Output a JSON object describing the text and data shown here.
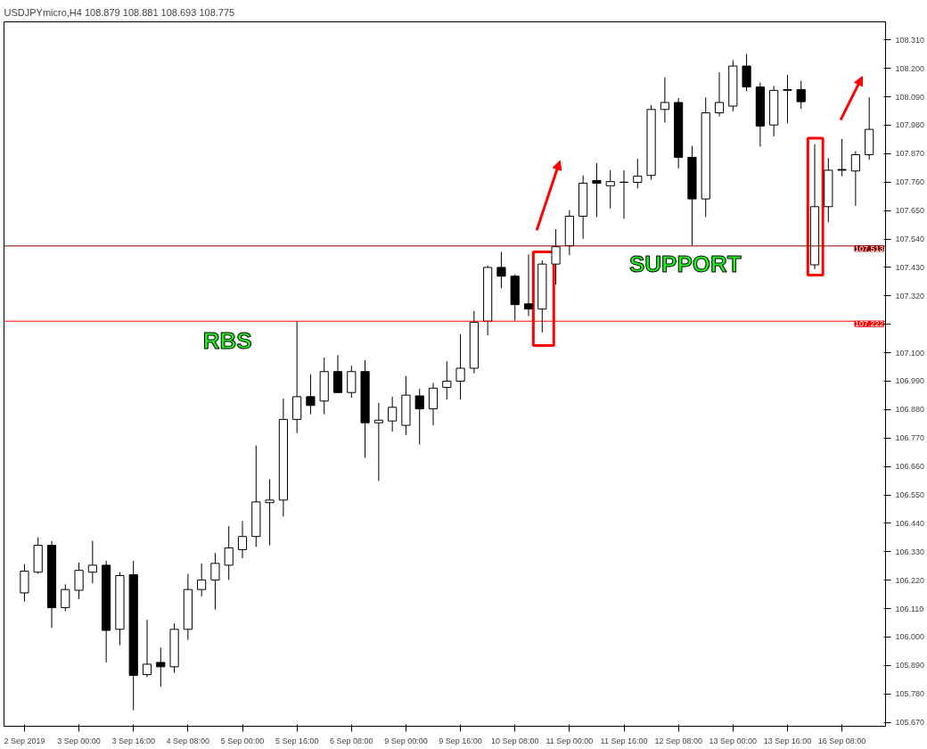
{
  "chart_data": {
    "type": "candlestick",
    "title": "USDJPYmicro,H4  108.879 108.881 108.693 108.775",
    "categories": [
      "2 Sep 2019",
      null,
      null,
      null,
      "3 Sep 00:00",
      null,
      null,
      null,
      "3 Sep 16:00",
      null,
      null,
      null,
      "4 Sep 08:00",
      null,
      null,
      null,
      "5 Sep 00:00",
      null,
      null,
      null,
      "5 Sep 16:00",
      null,
      null,
      null,
      "6 Sep 08:00",
      null,
      null,
      null,
      "9 Sep 00:00",
      null,
      null,
      null,
      "9 Sep 16:00",
      null,
      null,
      null,
      "10 Sep 08:00",
      null,
      null,
      null,
      "11 Sep 00:00",
      null,
      null,
      null,
      "11 Sep 16:00",
      null,
      null,
      null,
      "12 Sep 08:00",
      null,
      null,
      null,
      "13 Sep 00:00",
      null,
      null,
      null,
      "13 Sep 16:00",
      null,
      null,
      null,
      "16 Sep 08:00",
      null,
      null
    ],
    "ohlc": [
      [
        106.171,
        106.282,
        106.137,
        106.255
      ],
      [
        106.251,
        106.386,
        106.245,
        106.355
      ],
      [
        106.355,
        106.372,
        106.036,
        106.114
      ],
      [
        106.114,
        106.204,
        106.1,
        106.184
      ],
      [
        106.181,
        106.288,
        106.147,
        106.258
      ],
      [
        106.251,
        106.372,
        106.208,
        106.278
      ],
      [
        106.278,
        106.295,
        105.902,
        106.026
      ],
      [
        106.03,
        106.251,
        105.969,
        106.238
      ],
      [
        106.241,
        106.295,
        105.717,
        105.852
      ],
      [
        105.855,
        106.067,
        105.845,
        105.895
      ],
      [
        105.902,
        105.959,
        105.808,
        105.885
      ],
      [
        105.885,
        106.053,
        105.862,
        106.03
      ],
      [
        106.03,
        106.245,
        105.989,
        106.184
      ],
      [
        106.184,
        106.285,
        106.157,
        106.221
      ],
      [
        106.221,
        106.325,
        106.107,
        106.285
      ],
      [
        106.278,
        106.429,
        106.221,
        106.345
      ],
      [
        106.338,
        106.449,
        106.305,
        106.389
      ],
      [
        106.389,
        106.741,
        106.349,
        106.523
      ],
      [
        106.52,
        106.611,
        106.355,
        106.53
      ],
      [
        106.53,
        106.923,
        106.466,
        106.842
      ],
      [
        106.842,
        107.222,
        106.789,
        106.93
      ],
      [
        106.93,
        107.017,
        106.862,
        106.896
      ],
      [
        106.913,
        107.081,
        106.862,
        107.027
      ],
      [
        107.027,
        107.091,
        106.946,
        106.946
      ],
      [
        106.946,
        107.05,
        106.926,
        107.027
      ],
      [
        107.027,
        107.071,
        106.694,
        106.829
      ],
      [
        106.829,
        106.906,
        106.604,
        106.839
      ],
      [
        106.836,
        106.93,
        106.795,
        106.889
      ],
      [
        106.819,
        107.01,
        106.782,
        106.936
      ],
      [
        106.933,
        106.96,
        106.745,
        106.883
      ],
      [
        106.883,
        106.983,
        106.819,
        106.963
      ],
      [
        106.966,
        107.067,
        106.919,
        106.99
      ],
      [
        106.99,
        107.171,
        106.919,
        107.04
      ],
      [
        107.04,
        107.262,
        107.02,
        107.218
      ],
      [
        107.222,
        107.437,
        107.168,
        107.43
      ],
      [
        107.43,
        107.49,
        107.349,
        107.396
      ],
      [
        107.396,
        107.403,
        107.225,
        107.286
      ],
      [
        107.289,
        107.48,
        107.242,
        107.269
      ],
      [
        107.269,
        107.457,
        107.178,
        107.443
      ],
      [
        107.443,
        107.578,
        107.363,
        107.51
      ],
      [
        107.514,
        107.652,
        107.477,
        107.628
      ],
      [
        107.628,
        107.786,
        107.541,
        107.756
      ],
      [
        107.766,
        107.833,
        107.625,
        107.756
      ],
      [
        107.746,
        107.806,
        107.658,
        107.762
      ],
      [
        107.76,
        107.806,
        107.618,
        107.759
      ],
      [
        107.759,
        107.85,
        107.736,
        107.783
      ],
      [
        107.786,
        108.058,
        107.769,
        108.041
      ],
      [
        108.041,
        108.165,
        107.991,
        108.068
      ],
      [
        108.068,
        108.085,
        107.813,
        107.856
      ],
      [
        107.856,
        107.9,
        107.514,
        107.695
      ],
      [
        107.695,
        108.088,
        107.625,
        108.028
      ],
      [
        108.028,
        108.185,
        108.014,
        108.068
      ],
      [
        108.054,
        108.232,
        108.034,
        108.209
      ],
      [
        108.209,
        108.256,
        108.112,
        108.128
      ],
      [
        108.128,
        108.145,
        107.897,
        107.977
      ],
      [
        107.981,
        108.132,
        107.937,
        108.115
      ],
      [
        108.115,
        108.175,
        107.987,
        108.118
      ],
      [
        108.118,
        108.152,
        108.044,
        108.071
      ],
      [
        107.44,
        107.907,
        107.423,
        107.665
      ],
      [
        107.665,
        107.853,
        107.605,
        107.806
      ],
      [
        107.809,
        107.927,
        107.783,
        107.806
      ],
      [
        107.803,
        107.88,
        107.668,
        107.866
      ],
      [
        107.866,
        108.088,
        107.846,
        107.964
      ]
    ],
    "color": "#000000",
    "ylim": [
      105.655,
      108.38
    ],
    "yticks": [
      {
        "value": 105.67,
        "label": "105.670"
      },
      {
        "value": 105.78,
        "label": "105.780"
      },
      {
        "value": 105.89,
        "label": "105.890"
      },
      {
        "value": 106.0,
        "label": "106.000"
      },
      {
        "value": 106.11,
        "label": "106.110"
      },
      {
        "value": 106.22,
        "label": "106.220"
      },
      {
        "value": 106.33,
        "label": "106.330"
      },
      {
        "value": 106.44,
        "label": "106.440"
      },
      {
        "value": 106.55,
        "label": "106.550"
      },
      {
        "value": 106.66,
        "label": "106.660"
      },
      {
        "value": 106.77,
        "label": "106.770"
      },
      {
        "value": 106.88,
        "label": "106.880"
      },
      {
        "value": 106.99,
        "label": "106.990"
      },
      {
        "value": 107.1,
        "label": "107.100"
      },
      {
        "value": 107.21,
        "label": null
      },
      {
        "value": 107.32,
        "label": "107.320"
      },
      {
        "value": 107.43,
        "label": "107.430"
      },
      {
        "value": 107.54,
        "label": "107.540"
      },
      {
        "value": 107.65,
        "label": "107.650"
      },
      {
        "value": 107.76,
        "label": "107.760"
      },
      {
        "value": 107.87,
        "label": "107.870"
      },
      {
        "value": 107.98,
        "label": "107.980"
      },
      {
        "value": 108.09,
        "label": "108.090"
      },
      {
        "value": 108.2,
        "label": "108.200"
      },
      {
        "value": 108.31,
        "label": "108.310"
      }
    ],
    "ref_lines": [
      {
        "axis": "y",
        "value": 107.513,
        "label": "107.513",
        "color": "#8b0000"
      },
      {
        "axis": "y",
        "value": 107.222,
        "label": "107.222",
        "color": "#ff0000"
      }
    ],
    "annotations": [
      "RBS",
      "SUPPORT"
    ],
    "grid": false
  }
}
